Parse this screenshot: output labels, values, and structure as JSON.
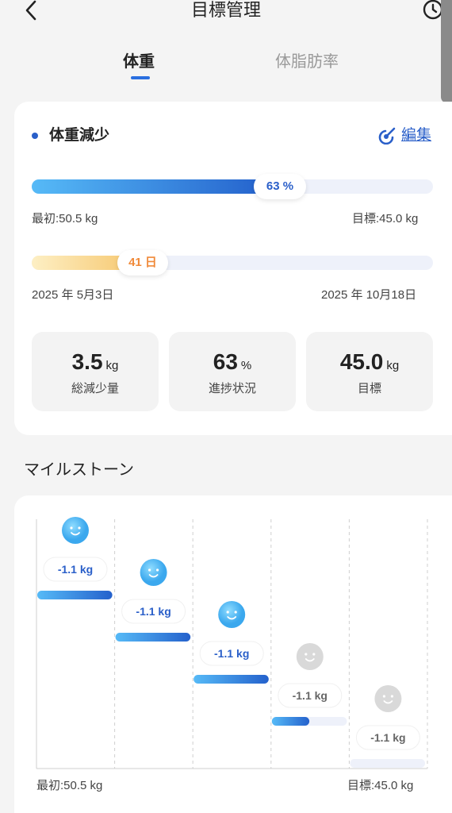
{
  "header": {
    "title": "目標管理",
    "icons": [
      "chevron-left-icon",
      "clock-icon"
    ]
  },
  "tabs": [
    {
      "label": "体重",
      "active": true
    },
    {
      "label": "体脂肪率",
      "active": false
    }
  ],
  "summary": {
    "title": "体重減少",
    "edit_label": "編集",
    "progress": {
      "percent": 63,
      "label": "63 %"
    },
    "start_weight": "最初:50.5 kg",
    "target_weight": "目標:45.0 kg",
    "elapsed": {
      "days_label": "41 日",
      "fraction": 0.2
    },
    "start_date": "2025 年 5月3日",
    "end_date": "2025 年 10月18日",
    "stats": [
      {
        "value": "3.5",
        "unit": "kg",
        "label": "総減少量"
      },
      {
        "value": "63",
        "unit": "%",
        "label": "進捗状況"
      },
      {
        "value": "45.0",
        "unit": "kg",
        "label": "目標"
      }
    ]
  },
  "milestones": {
    "title": "マイルストーン",
    "start_label": "最初:50.5 kg",
    "end_label": "目標:45.0 kg",
    "steps": [
      {
        "label": "-1.1 kg",
        "progress": 1.0,
        "achieved": true
      },
      {
        "label": "-1.1 kg",
        "progress": 1.0,
        "achieved": true
      },
      {
        "label": "-1.1 kg",
        "progress": 1.0,
        "achieved": true
      },
      {
        "label": "-1.1 kg",
        "progress": 0.5,
        "achieved": false
      },
      {
        "label": "-1.1 kg",
        "progress": 0.0,
        "achieved": false
      }
    ]
  },
  "colors": {
    "accent": "#2a5fc9",
    "progress_start": "#56baf7",
    "progress_end": "#2461cc",
    "time_start": "#fdefc4",
    "time_end": "#f6c56a",
    "time_text": "#f08a3a",
    "inactive_face": "#d9d9d9"
  }
}
